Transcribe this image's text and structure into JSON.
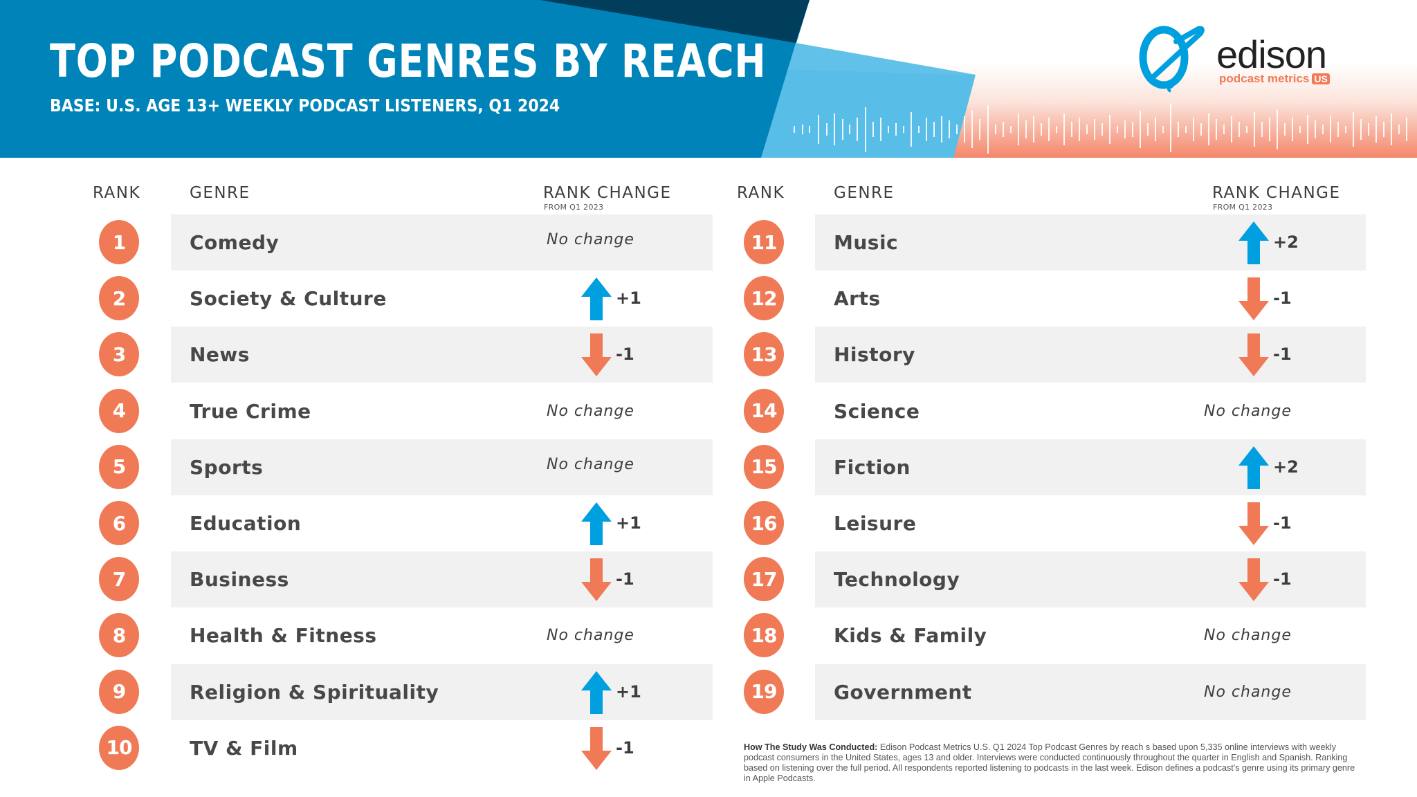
{
  "header": {
    "title": "TOP PODCAST GENRES BY REACH",
    "subtitle": "BASE: U.S. AGE 13+ WEEKLY PODCAST LISTENERS, Q1 2024"
  },
  "logo": {
    "icon": "edison-bulb-icon",
    "name": "edison",
    "tagline": "podcast metrics",
    "badge": "US"
  },
  "columns": {
    "rank": "RANK",
    "genre": "GENRE",
    "rank_change": "RANK CHANGE",
    "rank_change_sub": "FROM Q1 2023"
  },
  "colors": {
    "header_blue": "#0083b8",
    "navy": "#003e5c",
    "light_blue": "#58bee8",
    "orange": "#f07a55",
    "up_arrow": "#009fe0",
    "down_arrow": "#f07a55",
    "row_shade": "#f1f1f1"
  },
  "rows": [
    {
      "rank": "1",
      "genre": "Comedy",
      "change": "No change",
      "dir": "none"
    },
    {
      "rank": "2",
      "genre": "Society & Culture",
      "change": "+1",
      "dir": "up"
    },
    {
      "rank": "3",
      "genre": "News",
      "change": "-1",
      "dir": "down"
    },
    {
      "rank": "4",
      "genre": "True Crime",
      "change": "No change",
      "dir": "none"
    },
    {
      "rank": "5",
      "genre": "Sports",
      "change": "No change",
      "dir": "none"
    },
    {
      "rank": "6",
      "genre": "Education",
      "change": "+1",
      "dir": "up"
    },
    {
      "rank": "7",
      "genre": "Business",
      "change": "-1",
      "dir": "down"
    },
    {
      "rank": "8",
      "genre": "Health & Fitness",
      "change": "No change",
      "dir": "none"
    },
    {
      "rank": "9",
      "genre": "Religion & Spirituality",
      "change": "+1",
      "dir": "up"
    },
    {
      "rank": "10",
      "genre": "TV & Film",
      "change": "-1",
      "dir": "down"
    },
    {
      "rank": "11",
      "genre": "Music",
      "change": "+2",
      "dir": "up"
    },
    {
      "rank": "12",
      "genre": "Arts",
      "change": "-1",
      "dir": "down"
    },
    {
      "rank": "13",
      "genre": "History",
      "change": "-1",
      "dir": "down"
    },
    {
      "rank": "14",
      "genre": "Science",
      "change": "No change",
      "dir": "none"
    },
    {
      "rank": "15",
      "genre": "Fiction",
      "change": "+2",
      "dir": "up"
    },
    {
      "rank": "16",
      "genre": "Leisure",
      "change": "-1",
      "dir": "down"
    },
    {
      "rank": "17",
      "genre": "Technology",
      "change": "-1",
      "dir": "down"
    },
    {
      "rank": "18",
      "genre": "Kids & Family",
      "change": "No change",
      "dir": "none"
    },
    {
      "rank": "19",
      "genre": "Government",
      "change": "No change",
      "dir": "none"
    }
  ],
  "footnote": {
    "lead": "How The Study Was Conducted:",
    "body": " Edison Podcast Metrics U.S. Q1 2024 Top Podcast Genres by reach s based upon 5,335 online interviews with weekly podcast consumers in the United States, ages 13 and older. Interviews were conducted continuously throughout the quarter in English and Spanish. Ranking based on listening over the full period. All respondents reported listening to podcasts in the last week. Edison defines a podcast's genre using its primary genre in Apple Podcasts."
  },
  "chart_data": {
    "type": "table",
    "title": "TOP PODCAST GENRES BY REACH",
    "subtitle": "BASE: U.S. AGE 13+ WEEKLY PODCAST LISTENERS, Q1 2024",
    "columns": [
      "Rank",
      "Genre",
      "Rank Change (from Q1 2023)"
    ],
    "rows": [
      [
        1,
        "Comedy",
        0
      ],
      [
        2,
        "Society & Culture",
        1
      ],
      [
        3,
        "News",
        -1
      ],
      [
        4,
        "True Crime",
        0
      ],
      [
        5,
        "Sports",
        0
      ],
      [
        6,
        "Education",
        1
      ],
      [
        7,
        "Business",
        -1
      ],
      [
        8,
        "Health & Fitness",
        0
      ],
      [
        9,
        "Religion & Spirituality",
        1
      ],
      [
        10,
        "TV & Film",
        -1
      ],
      [
        11,
        "Music",
        2
      ],
      [
        12,
        "Arts",
        -1
      ],
      [
        13,
        "History",
        -1
      ],
      [
        14,
        "Science",
        0
      ],
      [
        15,
        "Fiction",
        2
      ],
      [
        16,
        "Leisure",
        -1
      ],
      [
        17,
        "Technology",
        -1
      ],
      [
        18,
        "Kids & Family",
        0
      ],
      [
        19,
        "Government",
        0
      ]
    ]
  }
}
